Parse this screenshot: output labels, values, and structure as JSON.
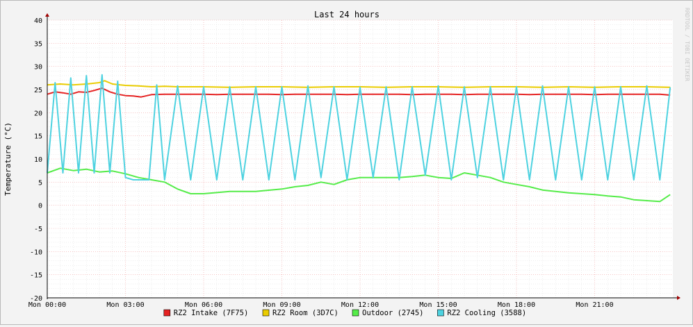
{
  "chart_data": {
    "type": "line",
    "title": "Last 24 hours",
    "ylabel": "Temperature (°C)",
    "watermark": "RRDTOOL / TOBI OETIKER",
    "ylim": [
      -20,
      40
    ],
    "yticks": [
      "40",
      "35",
      "30",
      "25",
      "20",
      "15",
      "10",
      "5",
      "0",
      "-5",
      "-10",
      "-15",
      "-20"
    ],
    "xlim_hours": [
      0,
      24
    ],
    "xticks": [
      "Mon 00:00",
      "Mon 03:00",
      "Mon 06:00",
      "Mon 09:00",
      "Mon 12:00",
      "Mon 15:00",
      "Mon 18:00",
      "Mon 21:00"
    ],
    "grid": true,
    "legend_position": "bottom",
    "series": [
      {
        "name": "RZ2 Intake (7F75)",
        "color": "#e52222",
        "x": [
          0,
          0.3,
          0.6,
          0.9,
          1.2,
          1.5,
          1.8,
          2.1,
          2.4,
          2.7,
          3.0,
          3.3,
          3.6,
          4.0,
          4.5,
          5.0,
          5.5,
          6.0,
          6.5,
          7.0,
          7.5,
          8.0,
          8.5,
          9.0,
          9.5,
          10.0,
          10.5,
          11.0,
          11.5,
          12.0,
          12.5,
          13.0,
          13.5,
          14.0,
          14.5,
          15.0,
          15.5,
          16.0,
          16.5,
          17.0,
          17.5,
          18.0,
          18.5,
          19.0,
          19.5,
          20.0,
          20.5,
          21.0,
          21.5,
          22.0,
          22.5,
          23.0,
          23.5,
          23.9
        ],
        "y": [
          24.0,
          24.5,
          24.3,
          24.0,
          24.5,
          24.4,
          24.8,
          25.3,
          24.5,
          24.0,
          23.7,
          23.6,
          23.4,
          23.9,
          24.0,
          24.0,
          24.0,
          24.0,
          23.9,
          24.0,
          24.0,
          24.0,
          24.0,
          23.9,
          24.0,
          24.0,
          24.0,
          24.0,
          23.9,
          24.0,
          24.0,
          24.0,
          24.0,
          23.9,
          24.0,
          24.0,
          24.0,
          23.9,
          24.0,
          24.0,
          24.0,
          24.0,
          23.9,
          24.0,
          24.0,
          24.0,
          24.0,
          23.9,
          24.0,
          24.0,
          24.0,
          24.0,
          24.0,
          23.8
        ]
      },
      {
        "name": "RZ2 Room (3D7C)",
        "color": "#eacc00",
        "x": [
          0,
          0.5,
          1.0,
          1.5,
          2.0,
          2.2,
          2.5,
          2.8,
          3.0,
          3.5,
          4.0,
          4.5,
          5.0,
          5.5,
          6.0,
          7.0,
          8.0,
          9.0,
          10.0,
          11.0,
          12.0,
          13.0,
          14.0,
          15.0,
          16.0,
          17.0,
          18.0,
          19.0,
          20.0,
          21.0,
          22.0,
          23.0,
          23.9
        ],
        "y": [
          26.0,
          26.2,
          26.0,
          26.2,
          26.5,
          26.9,
          26.2,
          26.0,
          25.9,
          25.8,
          25.6,
          25.7,
          25.6,
          25.6,
          25.6,
          25.5,
          25.6,
          25.6,
          25.5,
          25.6,
          25.6,
          25.5,
          25.6,
          25.6,
          25.5,
          25.6,
          25.6,
          25.5,
          25.6,
          25.5,
          25.6,
          25.6,
          25.5
        ]
      },
      {
        "name": "Outdoor (2745)",
        "color": "#54ec48",
        "x": [
          0,
          0.5,
          1.0,
          1.5,
          2.0,
          2.5,
          3.0,
          3.5,
          4.0,
          4.5,
          5.0,
          5.5,
          6.0,
          7.0,
          8.0,
          9.0,
          9.5,
          10.0,
          10.5,
          11.0,
          11.5,
          12.0,
          12.5,
          13.0,
          13.5,
          14.0,
          14.5,
          15.0,
          15.5,
          16.0,
          16.5,
          17.0,
          17.5,
          18.0,
          18.5,
          19.0,
          19.5,
          20.0,
          20.5,
          21.0,
          21.5,
          22.0,
          22.5,
          23.0,
          23.5,
          23.9
        ],
        "y": [
          7.0,
          8.0,
          7.5,
          7.8,
          7.2,
          7.4,
          6.8,
          6.0,
          5.5,
          5.0,
          3.5,
          2.5,
          2.5,
          3.0,
          3.0,
          3.5,
          4.0,
          4.3,
          5.0,
          4.5,
          5.5,
          6.0,
          6.0,
          6.0,
          6.0,
          6.2,
          6.5,
          6.0,
          5.8,
          7.0,
          6.5,
          6.0,
          5.0,
          4.5,
          4.0,
          3.3,
          3.0,
          2.7,
          2.5,
          2.3,
          2.0,
          1.8,
          1.2,
          1.0,
          0.8,
          2.3
        ]
      },
      {
        "name": "RZ2 Cooling (3588)",
        "color": "#4dd2e0",
        "x": [
          0,
          0.3,
          0.6,
          0.9,
          1.2,
          1.5,
          1.8,
          2.1,
          2.4,
          2.7,
          3.0,
          3.3,
          3.6,
          3.9,
          4.2,
          4.5,
          5.0,
          5.5,
          6.0,
          6.5,
          7.0,
          7.5,
          8.0,
          8.5,
          9.0,
          9.5,
          10.0,
          10.5,
          11.0,
          11.5,
          12.0,
          12.5,
          13.0,
          13.5,
          14.0,
          14.5,
          15.0,
          15.5,
          16.0,
          16.5,
          17.0,
          17.5,
          18.0,
          18.5,
          19.0,
          19.5,
          20.0,
          20.5,
          21.0,
          21.5,
          22.0,
          22.5,
          23.0,
          23.5,
          23.9
        ],
        "y": [
          7.0,
          26.5,
          7.0,
          27.5,
          7.0,
          28.0,
          7.0,
          28.2,
          7.0,
          26.8,
          6.0,
          5.5,
          5.5,
          5.5,
          26.0,
          5.5,
          25.8,
          5.5,
          25.6,
          5.5,
          25.6,
          5.5,
          25.6,
          5.5,
          25.6,
          5.5,
          25.8,
          6.0,
          25.6,
          5.5,
          25.5,
          6.0,
          25.6,
          5.5,
          25.6,
          6.5,
          25.8,
          5.5,
          25.6,
          6.0,
          25.6,
          5.5,
          25.6,
          5.5,
          25.8,
          5.5,
          25.6,
          5.5,
          25.6,
          5.5,
          25.6,
          5.5,
          25.8,
          5.5,
          25.5
        ]
      }
    ]
  }
}
